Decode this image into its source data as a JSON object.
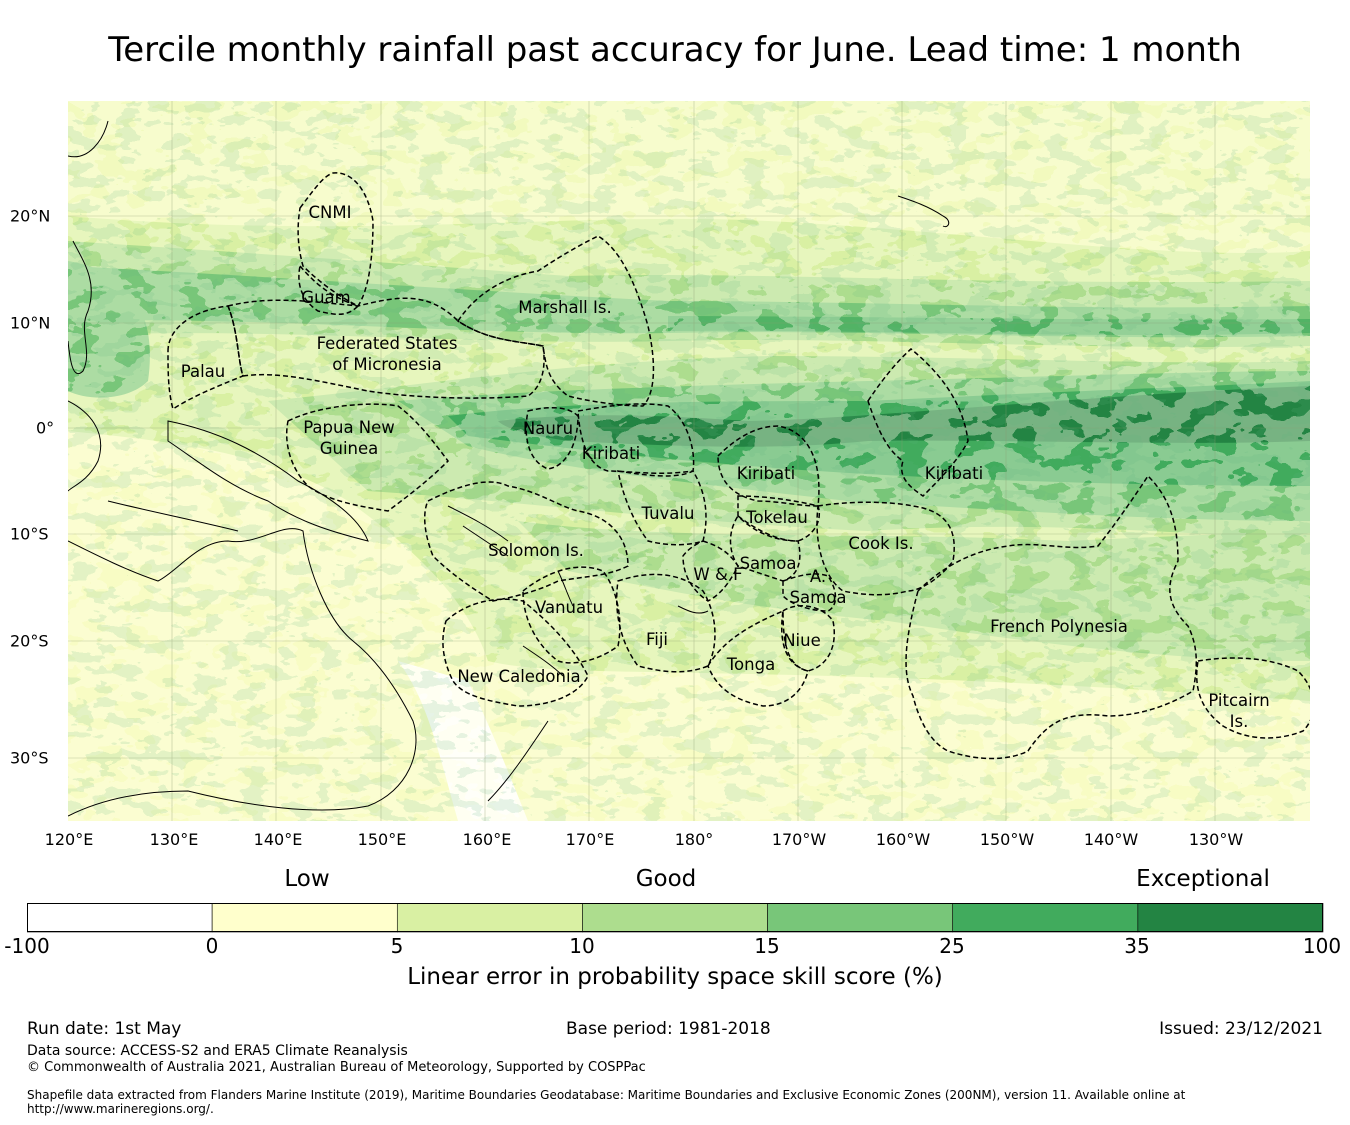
{
  "title": "Tercile monthly rainfall past accuracy for June. Lead time: 1 month",
  "map": {
    "lon_labels": [
      "120°E",
      "130°E",
      "140°E",
      "150°E",
      "160°E",
      "170°E",
      "180°",
      "170°W",
      "160°W",
      "150°W",
      "140°W",
      "130°W"
    ],
    "lat_labels": [
      "20°N",
      "10°N",
      "0°",
      "10°S",
      "20°S",
      "30°S"
    ],
    "country_labels": [
      "CNMI",
      "Guam",
      "Marshall Is.",
      "Federated States",
      "of Micronesia",
      "Palau",
      "Papua New",
      "Guinea",
      "Nauru",
      "Kiribati",
      "Kiribati",
      "Kiribati",
      "Tuvalu",
      "Tokelau",
      "Solomon Is.",
      "Samoa",
      "W & F",
      "A.",
      "Samoa",
      "Cook Is.",
      "Vanuatu",
      "Fiji",
      "Niue",
      "Tonga",
      "French Polynesia",
      "New Caledonia",
      "Pitcairn",
      "Is."
    ]
  },
  "legend": {
    "categories": [
      "Low",
      "Good",
      "Exceptional"
    ],
    "bins": [
      {
        "from": -100,
        "to": 0,
        "color": "#ffffff"
      },
      {
        "from": 0,
        "to": 5,
        "color": "#ffffcc"
      },
      {
        "from": 5,
        "to": 10,
        "color": "#d9f0a3"
      },
      {
        "from": 10,
        "to": 15,
        "color": "#addd8e"
      },
      {
        "from": 15,
        "to": 25,
        "color": "#78c679"
      },
      {
        "from": 25,
        "to": 35,
        "color": "#41ab5d"
      },
      {
        "from": 35,
        "to": 100,
        "color": "#238443"
      }
    ],
    "ticks": [
      "-100",
      "0",
      "5",
      "10",
      "15",
      "25",
      "35",
      "100"
    ],
    "label": "Linear error in probability space skill score (%)"
  },
  "footer": {
    "run_date": "Run date: 1st May",
    "base_period": "Base period: 1981-2018",
    "issued": "Issued: 23/12/2021",
    "data_source": "Data source: ACCESS-S2 and ERA5 Climate Reanalysis",
    "copyright": "© Commonwealth of Australia 2021, Australian Bureau of Meteorology, Supported by COSPPac",
    "shapefile_note": "Shapefile data extracted from Flanders Marine Institute (2019), Maritime Boundaries Geodatabase: Maritime Boundaries and Exclusive Economic Zones (200NM), version 11. Available online at http://www.marineregions.org/."
  }
}
